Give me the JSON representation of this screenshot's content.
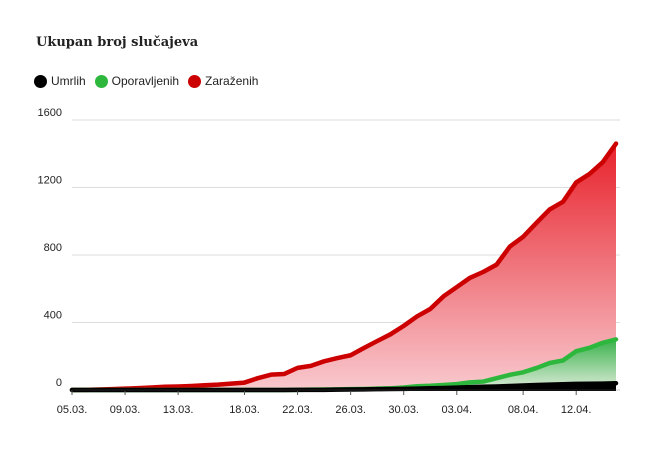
{
  "chart_data": {
    "type": "area",
    "title": "Ukupan broj slučajeva",
    "xlabel": "",
    "ylabel": "",
    "ylim": [
      0,
      1600
    ],
    "yticks": [
      "0",
      "400",
      "800",
      "1200",
      "1600"
    ],
    "x_tick_labels": [
      "05.03.",
      "09.03.",
      "13.03.",
      "18.03.",
      "22.03.",
      "26.03.",
      "30.03.",
      "03.04.",
      "08.04.",
      "12.04."
    ],
    "grid": true,
    "legend": "top-left",
    "x": [
      "05.03.",
      "06.03.",
      "07.03.",
      "08.03.",
      "09.03.",
      "10.03.",
      "11.03.",
      "12.03.",
      "13.03.",
      "14.03.",
      "15.03.",
      "16.03.",
      "17.03.",
      "18.03.",
      "19.03.",
      "20.03.",
      "21.03.",
      "22.03.",
      "23.03.",
      "24.03.",
      "25.03.",
      "26.03.",
      "27.03.",
      "28.03.",
      "29.03.",
      "30.03.",
      "31.03.",
      "01.04.",
      "02.04.",
      "03.04.",
      "04.04.",
      "05.04.",
      "06.04.",
      "07.04.",
      "08.04.",
      "09.04.",
      "10.04.",
      "11.04.",
      "12.04.",
      "13.04.",
      "14.04.",
      "15.04."
    ],
    "series": [
      {
        "name": "Umrlih",
        "color": "#000000",
        "values": [
          0,
          0,
          0,
          0,
          0,
          0,
          0,
          0,
          0,
          0,
          0,
          0,
          0,
          0,
          0,
          0,
          0,
          1,
          1,
          1,
          2,
          3,
          4,
          5,
          6,
          7,
          8,
          10,
          12,
          14,
          17,
          19,
          21,
          24,
          27,
          30,
          32,
          34,
          36,
          37,
          38,
          40
        ]
      },
      {
        "name": "Oporavljenih",
        "color": "#2db83d",
        "values": [
          0,
          0,
          0,
          0,
          0,
          0,
          0,
          0,
          0,
          0,
          0,
          0,
          0,
          0,
          0,
          0,
          0,
          1,
          2,
          3,
          4,
          5,
          6,
          8,
          10,
          15,
          22,
          25,
          30,
          35,
          45,
          50,
          70,
          90,
          105,
          130,
          160,
          175,
          230,
          250,
          280,
          300
        ]
      },
      {
        "name": "Zaraženih",
        "color": "#cc0000",
        "values": [
          1,
          1,
          3,
          5,
          8,
          11,
          15,
          19,
          21,
          24,
          28,
          32,
          38,
          44,
          70,
          91,
          95,
          131,
          143,
          170,
          189,
          206,
          249,
          290,
          330,
          380,
          436,
          480,
          555,
          610,
          665,
          700,
          743,
          850,
          908,
          990,
          1070,
          1115,
          1230,
          1280,
          1350,
          1460
        ]
      }
    ]
  }
}
